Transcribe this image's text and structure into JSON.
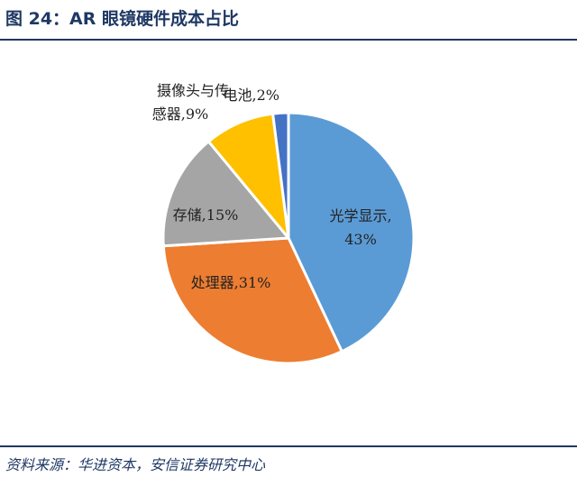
{
  "figure": {
    "title": "图 24：AR 眼镜硬件成本占比",
    "source": "资料来源：华进资本，安信证券研究中心"
  },
  "chart_data": {
    "type": "pie",
    "title": "",
    "slices": [
      {
        "name": "光学显示",
        "value": 43,
        "label_line1": "光学显示,",
        "label_line2": "43%",
        "color": "#5b9bd5"
      },
      {
        "name": "处理器",
        "value": 31,
        "label_line1": "处理器,31%",
        "label_line2": "",
        "color": "#ed7d31"
      },
      {
        "name": "存储",
        "value": 15,
        "label_line1": "存储,15%",
        "label_line2": "",
        "color": "#a5a5a5"
      },
      {
        "name": "摄像头与传感器",
        "value": 9,
        "label_line1": "摄像头与传",
        "label_line2": "感器,9%",
        "color": "#ffc000"
      },
      {
        "name": "电池",
        "value": 2,
        "label_line1": "电池,2%",
        "label_line2": "",
        "color": "#4472c4"
      }
    ],
    "start_angle_deg": 0,
    "direction": "clockwise",
    "legend": "none"
  }
}
